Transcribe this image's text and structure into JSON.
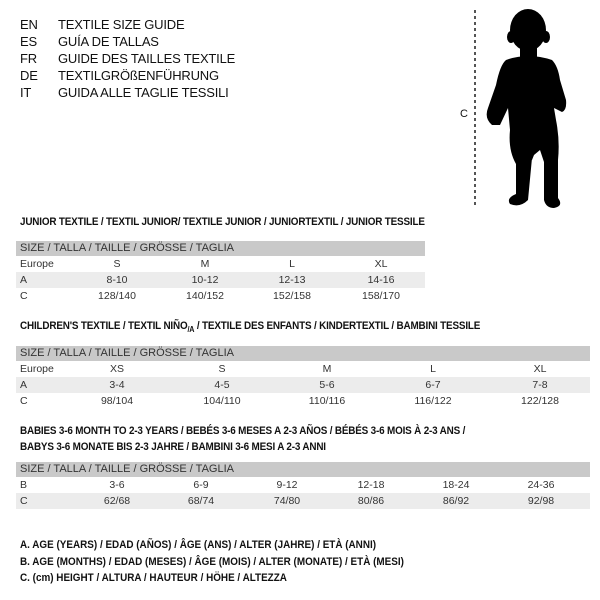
{
  "languages": [
    {
      "code": "EN",
      "text": "TEXTILE SIZE GUIDE"
    },
    {
      "code": "ES",
      "text": "GUÍA DE TALLAS"
    },
    {
      "code": "FR",
      "text": "GUIDE DES TAILLES TEXTILE"
    },
    {
      "code": "DE",
      "text": "TEXTILGRÖßENFÜHRUNG"
    },
    {
      "code": "IT",
      "text": "GUIDA ALLE TAGLIE TESSILI"
    }
  ],
  "figure": {
    "measure_label": "C",
    "icon": "child-silhouette"
  },
  "size_header": "SIZE / TALLA / TAILLE / GRÖSSE / TAGLIA",
  "junior": {
    "title": "JUNIOR TEXTILE / TEXTIL JUNIOR/ TEXTILE JUNIOR / JUNIORTEXTIL / JUNIOR TESSILE",
    "rows": [
      {
        "label": "Europe",
        "cells": [
          "S",
          "M",
          "L",
          "XL"
        ]
      },
      {
        "label": "A",
        "cells": [
          "8-10",
          "10-12",
          "12-13",
          "14-16"
        ]
      },
      {
        "label": "C",
        "cells": [
          "128/140",
          "140/152",
          "152/158",
          "158/170"
        ]
      }
    ]
  },
  "children": {
    "title": "CHILDREN'S TEXTILE / TEXTIL NIÑO/A / TEXTILE DES ENFANTS / KINDERTEXTIL / BAMBINI TESSILE",
    "rows": [
      {
        "label": "Europe",
        "cells": [
          "XS",
          "S",
          "M",
          "L",
          "XL"
        ]
      },
      {
        "label": "A",
        "cells": [
          "3-4",
          "4-5",
          "5-6",
          "6-7",
          "7-8"
        ]
      },
      {
        "label": "C",
        "cells": [
          "98/104",
          "104/110",
          "110/116",
          "116/122",
          "122/128"
        ]
      }
    ]
  },
  "babies": {
    "title_line1": "BABIES 3-6 MONTH TO 2-3 YEARS / BEBÉS 3-6 MESES A 2-3 AÑOS / BÉBÉS 3-6 MOIS À 2-3 ANS /",
    "title_line2": "BABYS 3-6 MONATE BIS 2-3 JAHRE / BAMBINI 3-6 MESI A 2-3 ANNI",
    "rows": [
      {
        "label": "B",
        "cells": [
          "3-6",
          "6-9",
          "9-12",
          "12-18",
          "18-24",
          "24-36"
        ]
      },
      {
        "label": "C",
        "cells": [
          "62/68",
          "68/74",
          "74/80",
          "80/86",
          "86/92",
          "92/98"
        ]
      }
    ]
  },
  "legend": [
    "A. AGE (YEARS) / EDAD (AÑOS) / ÂGE (ANS) / ALTER (JAHRE) / ETÀ (ANNI)",
    "B. AGE (MONTHS) / EDAD (MESES) / ÂGE (MOIS) / ALTER (MONATE) / ETÀ (MESI)",
    "C. (cm) HEIGHT / ALTURA / HAUTEUR / HÖHE / ALTEZZA"
  ],
  "colors": {
    "header_bg": "#c9c9c9",
    "stripe_bg": "#ececec"
  }
}
